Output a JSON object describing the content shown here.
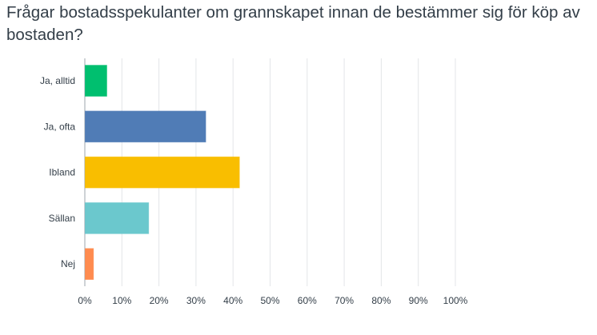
{
  "chart_data": {
    "type": "bar",
    "orientation": "horizontal",
    "title": "Frågar bostadsspekulanter om grannskapet innan de bestämmer sig för köp av bostaden?",
    "categories": [
      "Ja, alltid",
      "Ja, ofta",
      "Ibland",
      "Sällan",
      "Nej"
    ],
    "values": [
      5.8,
      32.5,
      41.6,
      17.1,
      2.2
    ],
    "colors": [
      "#00bf6f",
      "#507cb6",
      "#f9be00",
      "#6bc8cd",
      "#ff8b4f"
    ],
    "xlim": [
      0,
      100
    ],
    "xticks": [
      "0%",
      "10%",
      "20%",
      "30%",
      "40%",
      "50%",
      "60%",
      "70%",
      "80%",
      "90%",
      "100%"
    ],
    "xlabel": "",
    "ylabel": "",
    "grid": true
  }
}
